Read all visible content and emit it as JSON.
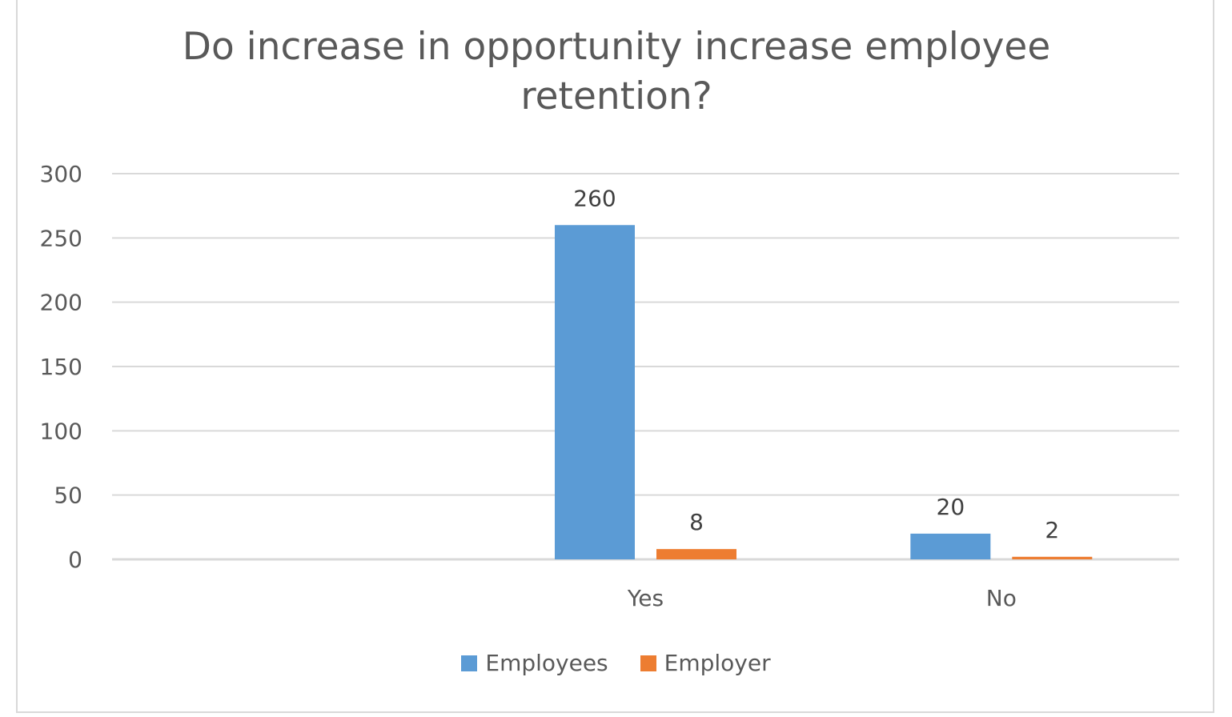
{
  "chart_data": {
    "type": "bar",
    "title": "Do increase in opportunity increase employee retention?",
    "categories": [
      "",
      "Yes",
      "No"
    ],
    "series": [
      {
        "name": "Employees",
        "values": [
          null,
          260,
          20
        ],
        "color": "#5b9bd5"
      },
      {
        "name": "Employer",
        "values": [
          null,
          8,
          2
        ],
        "color": "#ed7d31"
      }
    ],
    "ylim": [
      0,
      300
    ],
    "yticks": [
      0,
      50,
      100,
      150,
      200,
      250,
      300
    ],
    "grid": true,
    "legend_position": "bottom",
    "data_labels": true
  }
}
